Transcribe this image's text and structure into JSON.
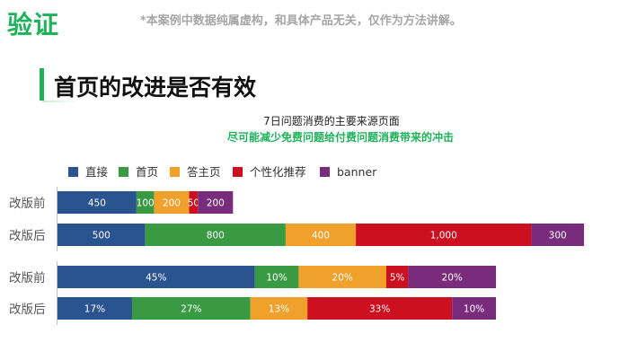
{
  "header": {
    "brand": "验证",
    "disclaimer": "*本案例中数据纯属虚构，和具体产品无关，仅作为方法讲解。",
    "page_title": "首页的改进是否有效"
  },
  "chart_data": [
    {
      "type": "bar",
      "orientation": "horizontal-stacked",
      "title": "7日问题消费的主要来源页面",
      "subtitle": "尽可能减少免费问题给付费问题消费带来的冲击",
      "legend_position": "top-left",
      "categories": [
        "改版前",
        "改版后"
      ],
      "series": [
        {
          "name": "直接",
          "color": "#2a5490",
          "values": [
            450,
            500
          ],
          "labels": [
            "450",
            "500"
          ]
        },
        {
          "name": "首页",
          "color": "#3a9a44",
          "values": [
            100,
            800
          ],
          "labels": [
            "100",
            "800"
          ]
        },
        {
          "name": "答主页",
          "color": "#f0a12b",
          "values": [
            200,
            400
          ],
          "labels": [
            "200",
            "400"
          ]
        },
        {
          "name": "个性化推荐",
          "color": "#cc1020",
          "values": [
            50,
            1000
          ],
          "labels": [
            "50",
            "1,000"
          ]
        },
        {
          "name": "banner",
          "color": "#7a2c7c",
          "values": [
            200,
            300
          ],
          "labels": [
            "200",
            "300"
          ]
        }
      ]
    },
    {
      "type": "bar",
      "orientation": "horizontal-stacked-percent",
      "categories": [
        "改版前",
        "改版后"
      ],
      "series": [
        {
          "name": "直接",
          "color": "#2a5490",
          "values": [
            45,
            17
          ],
          "labels": [
            "45%",
            "17%"
          ]
        },
        {
          "name": "首页",
          "color": "#3a9a44",
          "values": [
            10,
            27
          ],
          "labels": [
            "10%",
            "27%"
          ]
        },
        {
          "name": "答主页",
          "color": "#f0a12b",
          "values": [
            20,
            13
          ],
          "labels": [
            "20%",
            "13%"
          ]
        },
        {
          "name": "个性化推荐",
          "color": "#cc1020",
          "values": [
            5,
            33
          ],
          "labels": [
            "5%",
            "33%"
          ]
        },
        {
          "name": "banner",
          "color": "#7a2c7c",
          "values": [
            20,
            10
          ],
          "labels": [
            "20%",
            "10%"
          ]
        }
      ]
    }
  ]
}
